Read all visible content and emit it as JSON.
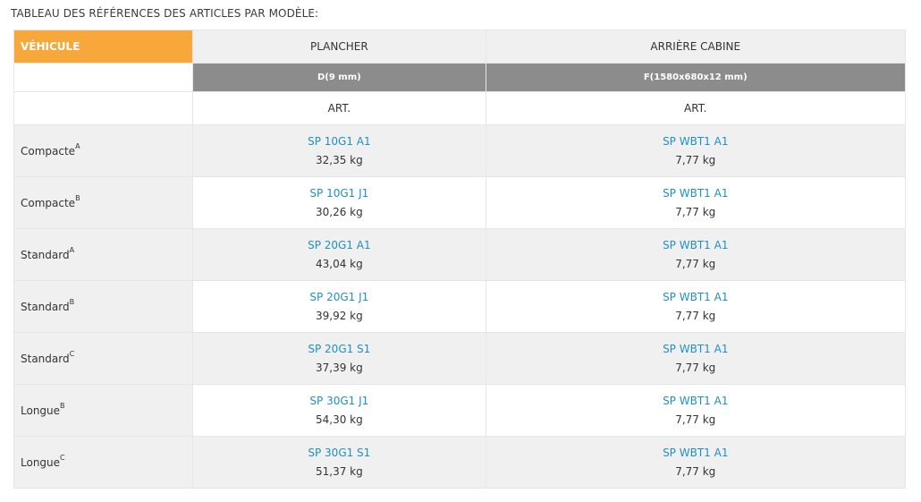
{
  "caption": "TABLEAU DES RÉFÉRENCES DES ARTICLES PAR MODÈLE:",
  "header": {
    "vehicle": "VÉHICULE",
    "plancher": "PLANCHER",
    "cabine": "ARRIÈRE CABINE"
  },
  "dimensions": {
    "plancher": "D(9 mm)",
    "cabine": "F(1580x680x12 mm)"
  },
  "art_label": "ART.",
  "rows": [
    {
      "vehicle": "Compacte",
      "sup": "A",
      "plancher_ref": "SP 10G1 A1",
      "plancher_weight": "32,35 kg",
      "cabine_ref": "SP WBT1 A1",
      "cabine_weight": "7,77 kg"
    },
    {
      "vehicle": "Compacte",
      "sup": "B",
      "plancher_ref": "SP 10G1 J1",
      "plancher_weight": "30,26 kg",
      "cabine_ref": "SP WBT1 A1",
      "cabine_weight": "7,77 kg"
    },
    {
      "vehicle": "Standard",
      "sup": "A",
      "plancher_ref": "SP 20G1 A1",
      "plancher_weight": "43,04 kg",
      "cabine_ref": "SP WBT1 A1",
      "cabine_weight": "7,77 kg"
    },
    {
      "vehicle": "Standard",
      "sup": "B",
      "plancher_ref": "SP 20G1 J1",
      "plancher_weight": "39,92 kg",
      "cabine_ref": "SP WBT1 A1",
      "cabine_weight": "7,77 kg"
    },
    {
      "vehicle": "Standard",
      "sup": "C",
      "plancher_ref": "SP 20G1 S1",
      "plancher_weight": "37,39 kg",
      "cabine_ref": "SP WBT1 A1",
      "cabine_weight": "7,77 kg"
    },
    {
      "vehicle": "Longue",
      "sup": "B",
      "plancher_ref": "SP 30G1 J1",
      "plancher_weight": "54,30 kg",
      "cabine_ref": "SP WBT1 A1",
      "cabine_weight": "7,77 kg"
    },
    {
      "vehicle": "Longue",
      "sup": "C",
      "plancher_ref": "SP 30G1 S1",
      "plancher_weight": "51,37 kg",
      "cabine_ref": "SP WBT1 A1",
      "cabine_weight": "7,77 kg"
    }
  ],
  "colors": {
    "accent": "#f8a83a",
    "link": "#1f8fc9",
    "dimension_bg": "#8c8c8c",
    "row_alt_bg": "#f0f0f0"
  }
}
